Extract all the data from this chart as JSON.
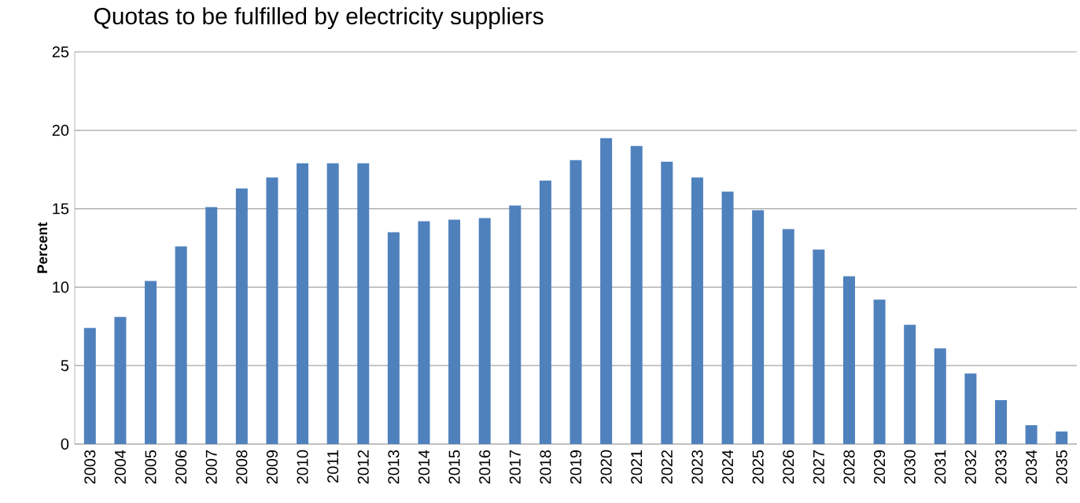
{
  "chart_data": {
    "type": "bar",
    "title": "Quotas to be fulfilled by electricity suppliers",
    "ylabel": "Percent",
    "categories": [
      "2003",
      "2004",
      "2005",
      "2006",
      "2007",
      "2008",
      "2009",
      "2010",
      "2011",
      "2012",
      "2013",
      "2014",
      "2015",
      "2016",
      "2017",
      "2018",
      "2019",
      "2020",
      "2021",
      "2022",
      "2023",
      "2024",
      "2025",
      "2026",
      "2027",
      "2028",
      "2029",
      "2030",
      "2031",
      "2032",
      "2033",
      "2034",
      "2035"
    ],
    "values": [
      7.4,
      8.1,
      10.4,
      12.6,
      15.1,
      16.3,
      17.0,
      17.9,
      17.9,
      17.9,
      13.5,
      14.2,
      14.3,
      14.4,
      15.2,
      16.8,
      18.1,
      19.5,
      19.0,
      18.0,
      17.0,
      16.1,
      14.9,
      13.7,
      12.4,
      10.7,
      9.2,
      7.6,
      6.1,
      4.5,
      2.8,
      1.2,
      0.8
    ],
    "color": "#4f81bd",
    "ylim": [
      0,
      25
    ],
    "yticks": [
      0,
      5,
      10,
      15,
      20,
      25
    ],
    "grid": "y"
  }
}
